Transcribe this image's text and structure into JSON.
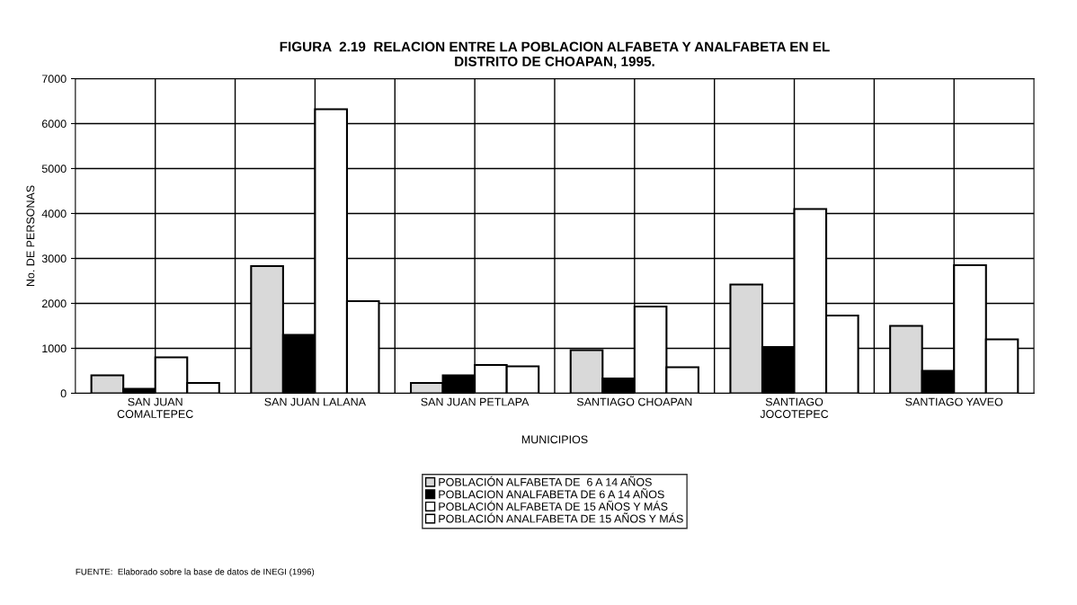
{
  "chart_data": {
    "type": "bar",
    "title": "FIGURA  2.19  RELACION ENTRE LA POBLACION ALFABETA Y ANALFABETA EN EL\nDISTRITO DE CHOAPAN, 1995.",
    "xlabel": "MUNICIPIOS",
    "ylabel": "No. DE PERSONAS",
    "categories": [
      "SAN JUAN\nCOMALTEPEC",
      "SAN JUAN LALANA",
      "SAN JUAN PETLAPA",
      "SANTIAGO CHOAPAN",
      "SANTIAGO\nJOCOTEPEC",
      "SANTIAGO YAVEO"
    ],
    "series": [
      {
        "name": "POBLACIÓN ALFABETA DE  6 A 14 AÑOS",
        "color": "#d9d9d9",
        "values": [
          400,
          2830,
          230,
          960,
          2420,
          1500
        ]
      },
      {
        "name": "POBLACION ANALFABETA DE 6 A 14 AÑOS",
        "color": "#000000",
        "values": [
          100,
          1300,
          400,
          330,
          1030,
          500
        ]
      },
      {
        "name": "POBLACIÓN ALFABETA DE 15 AÑOS Y MÁS",
        "color": "#ffffff",
        "values": [
          800,
          6320,
          630,
          1930,
          4100,
          2850
        ]
      },
      {
        "name": "POBLACIÓN ANALFABETA DE 15 AÑOS Y MÁS",
        "color": "#ffffff",
        "values": [
          230,
          2050,
          600,
          580,
          1730,
          1200
        ]
      }
    ],
    "ylim": [
      0,
      7000
    ],
    "yticks": [
      0,
      1000,
      2000,
      3000,
      4000,
      5000,
      6000,
      7000
    ],
    "grid": true,
    "legend": "bottom",
    "annotations": [
      "FUENTE:  Elaborado sobre la base de datos de INEGI (1996)"
    ]
  }
}
